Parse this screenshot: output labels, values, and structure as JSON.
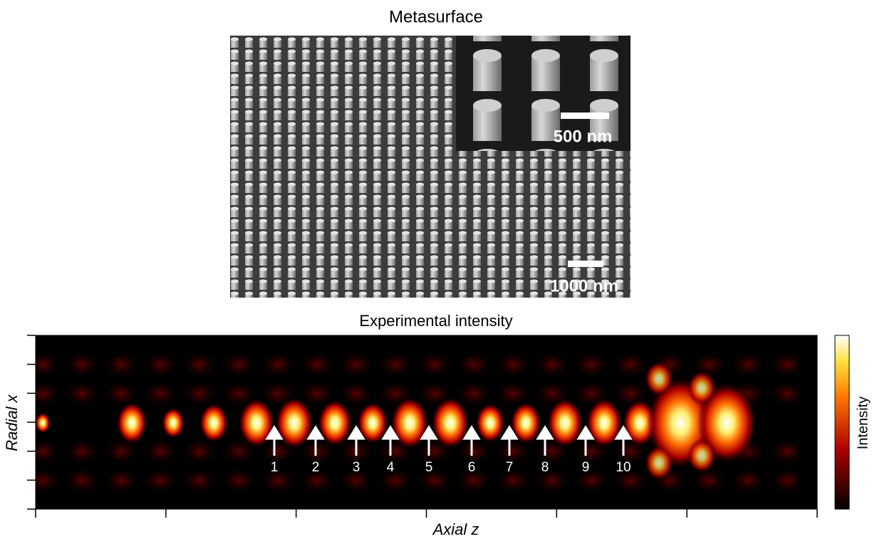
{
  "metasurface": {
    "title": "Metasurface",
    "scale_bars": [
      "500 nm",
      "1000 nm"
    ]
  },
  "intensity_plot": {
    "title": "Experimental intensity",
    "x_label": "Axial z",
    "y_label": "Radial x",
    "colorbar_label": "Intensity",
    "markers": [
      "1",
      "2",
      "3",
      "4",
      "5",
      "6",
      "7",
      "8",
      "9",
      "10"
    ]
  }
}
